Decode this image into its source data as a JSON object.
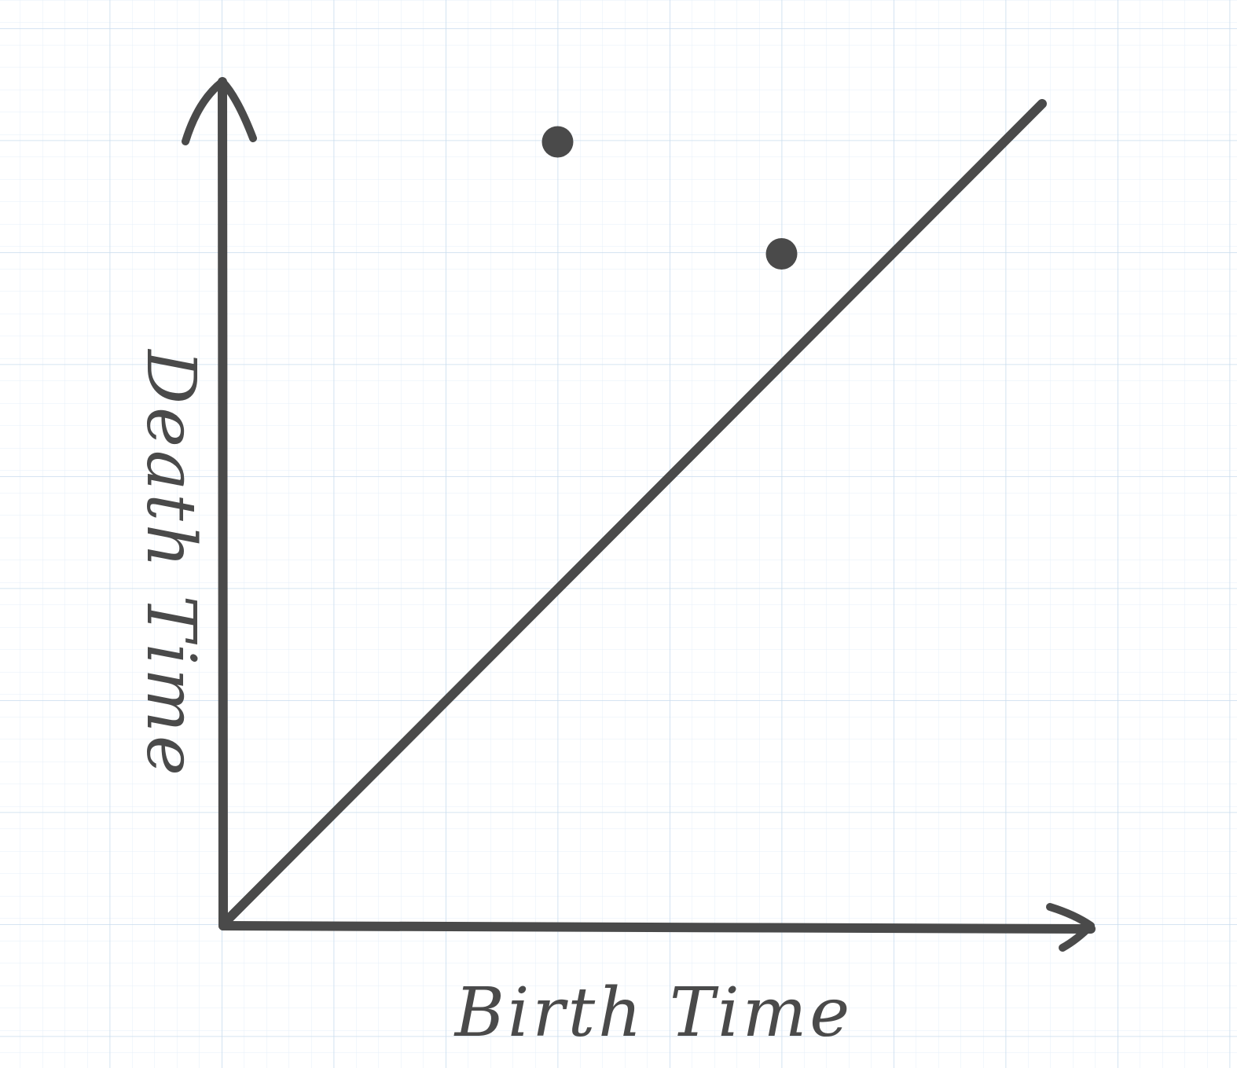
{
  "diagram": {
    "type": "persistence-diagram",
    "x_axis_label": "Birth Time",
    "y_axis_label": "Death Time",
    "diagonal": "birth = death",
    "points": [
      {
        "birth": 3,
        "death": 7
      },
      {
        "birth": 5,
        "death": 6
      }
    ],
    "colors": {
      "ink": "#4a4a4a",
      "grid_major": "#c8dcee",
      "grid_minor": "#e6eff8",
      "background": "#ffffff"
    }
  }
}
